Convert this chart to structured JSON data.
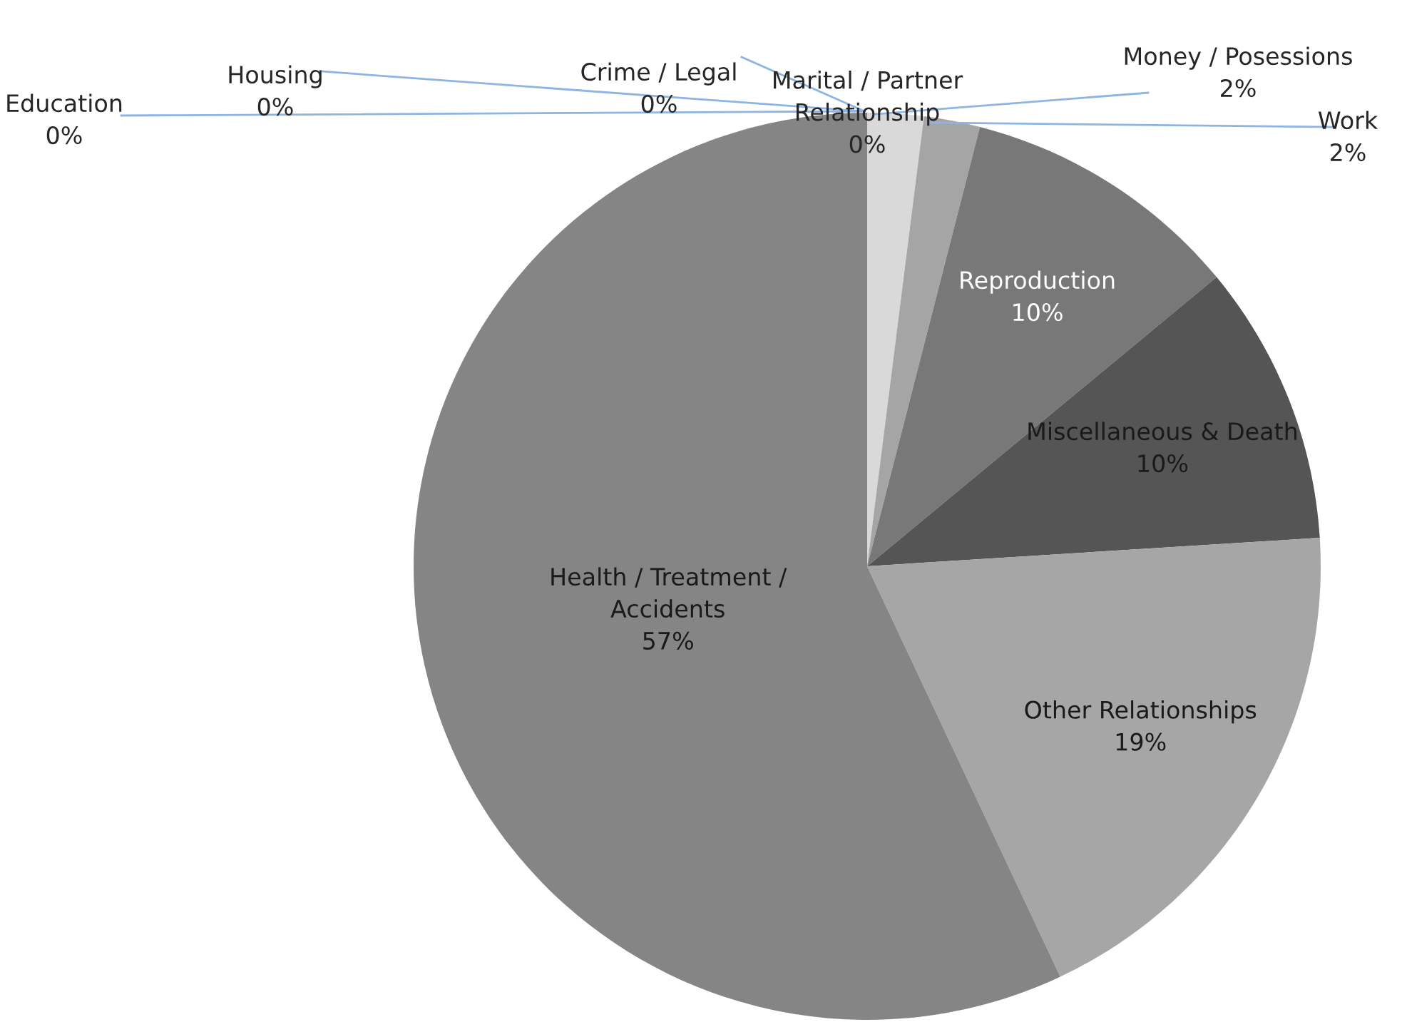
{
  "chart_data": {
    "type": "pie",
    "categories": [
      "Money / Posessions",
      "Work",
      "Reproduction",
      "Miscellaneous & Death",
      "Other Relationships",
      "Health / Treatment /\nAccidents",
      "Education",
      "Housing",
      "Crime / Legal",
      "Marital / Partner\nRelationship"
    ],
    "values": [
      2,
      2,
      10,
      10,
      19,
      57,
      0,
      0,
      0,
      0
    ],
    "value_labels": [
      "2%",
      "2%",
      "10%",
      "10%",
      "19%",
      "57%",
      "0%",
      "0%",
      "0%",
      "0%"
    ],
    "colors": [
      "#d9d9d9",
      "#a5a5a5",
      "#787878",
      "#555555",
      "#a6a6a6",
      "#858585",
      "#4f81bd",
      "#c0504d",
      "#9bbb59",
      "#8064a2"
    ],
    "legend": false
  }
}
